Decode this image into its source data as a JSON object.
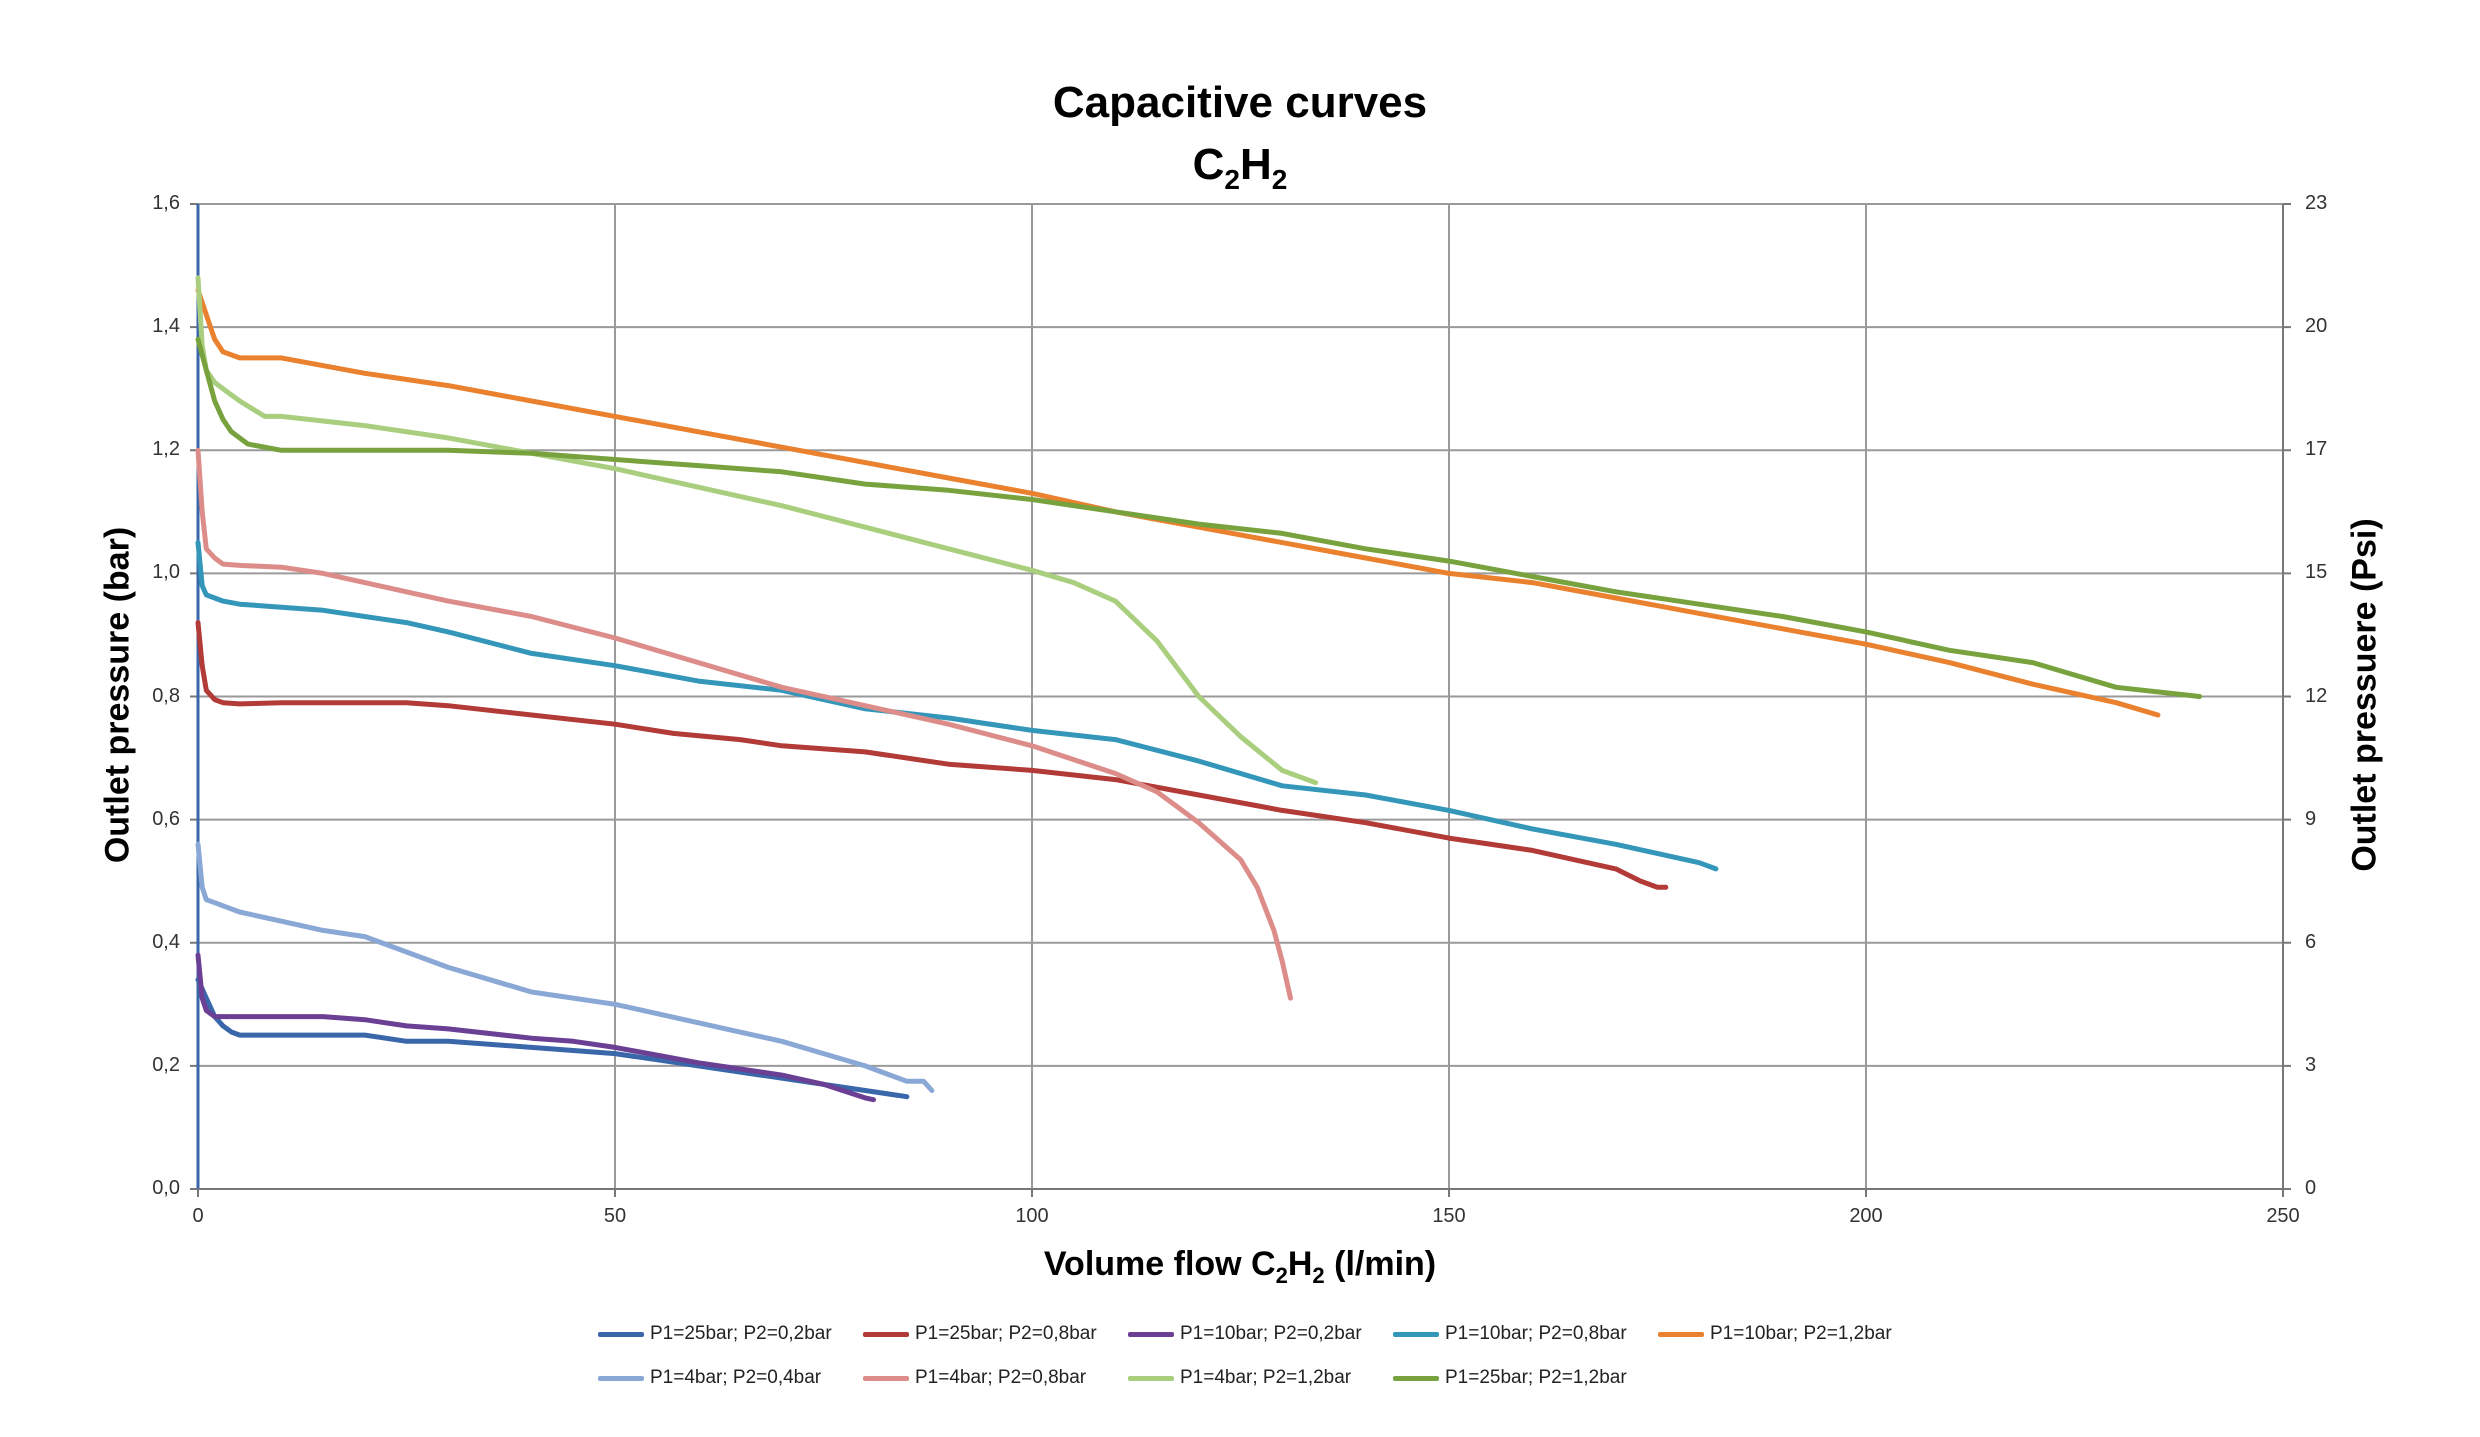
{
  "chart_data": {
    "type": "line",
    "title": "Capacitive curves",
    "subtitle": {
      "prefix": "C",
      "sub1": "2",
      "mid": "H",
      "sub2": "2"
    },
    "xlabel": {
      "prefix": "Volume flow C",
      "sub1": "2",
      "mid": "H",
      "sub2": "2",
      "suffix": " (l/min)"
    },
    "ylabel": "Outlet pressure (bar)",
    "y2label": "Outlet pressuere (Psi)",
    "xlim": [
      0,
      250
    ],
    "ylim": [
      0,
      1.6
    ],
    "x_ticks": [
      "0",
      "50",
      "100",
      "150",
      "200",
      "250"
    ],
    "y_ticks": [
      "0,0",
      "0,2",
      "0,4",
      "0,6",
      "0,8",
      "1,0",
      "1,2",
      "1,4",
      "1,6"
    ],
    "y2_ticks": [
      "0",
      "3",
      "6",
      "9",
      "12",
      "15",
      "17",
      "20",
      "23"
    ],
    "grid": true,
    "legend_position": "bottom",
    "series": [
      {
        "name": "P1=25bar; P2=0,2bar",
        "color": "#3a66aa",
        "x": [
          0,
          1,
          2,
          3,
          4,
          5,
          7,
          10,
          20,
          25,
          30,
          40,
          50,
          55,
          60,
          70,
          80,
          85
        ],
        "y": [
          0.34,
          0.31,
          0.28,
          0.265,
          0.255,
          0.25,
          0.25,
          0.25,
          0.25,
          0.24,
          0.24,
          0.23,
          0.22,
          0.21,
          0.2,
          0.18,
          0.16,
          0.15
        ]
      },
      {
        "name": "P1=25bar; P2=0,8bar",
        "color": "#b23a37",
        "x": [
          0,
          0.5,
          1,
          2,
          3,
          5,
          10,
          20,
          25,
          30,
          40,
          50,
          57,
          65,
          70,
          80,
          90,
          100,
          110,
          120,
          130,
          140,
          150,
          160,
          170,
          173,
          175,
          176
        ],
        "y": [
          0.92,
          0.85,
          0.81,
          0.795,
          0.79,
          0.788,
          0.79,
          0.79,
          0.79,
          0.785,
          0.77,
          0.755,
          0.74,
          0.73,
          0.72,
          0.71,
          0.69,
          0.68,
          0.665,
          0.64,
          0.615,
          0.595,
          0.57,
          0.55,
          0.52,
          0.5,
          0.49,
          0.49
        ]
      },
      {
        "name": "P1=10bar; P2=0,2bar",
        "color": "#6b3f93",
        "x": [
          0,
          0.5,
          1,
          2,
          5,
          10,
          15,
          20,
          25,
          30,
          40,
          45,
          50,
          60,
          70,
          75,
          80,
          81
        ],
        "y": [
          0.38,
          0.31,
          0.29,
          0.28,
          0.28,
          0.28,
          0.28,
          0.275,
          0.265,
          0.26,
          0.245,
          0.24,
          0.23,
          0.205,
          0.185,
          0.17,
          0.148,
          0.145
        ]
      },
      {
        "name": "P1=10bar; P2=0,8bar",
        "color": "#3497ba",
        "x": [
          0,
          0.5,
          1,
          3,
          5,
          10,
          15,
          20,
          25,
          30,
          40,
          50,
          60,
          70,
          80,
          90,
          100,
          110,
          120,
          130,
          140,
          150,
          160,
          170,
          180,
          182
        ],
        "y": [
          1.05,
          0.98,
          0.965,
          0.955,
          0.95,
          0.945,
          0.94,
          0.93,
          0.92,
          0.905,
          0.87,
          0.85,
          0.825,
          0.81,
          0.78,
          0.765,
          0.745,
          0.73,
          0.695,
          0.655,
          0.64,
          0.615,
          0.585,
          0.56,
          0.53,
          0.52
        ]
      },
      {
        "name": "P1=10bar; P2=1,2bar",
        "color": "#e9812f",
        "x": [
          0,
          1,
          2,
          3,
          5,
          8,
          10,
          20,
          30,
          40,
          50,
          60,
          70,
          80,
          90,
          100,
          110,
          120,
          130,
          140,
          150,
          160,
          170,
          180,
          190,
          200,
          210,
          220,
          230,
          235
        ],
        "y": [
          1.46,
          1.42,
          1.38,
          1.36,
          1.35,
          1.35,
          1.35,
          1.325,
          1.305,
          1.28,
          1.255,
          1.23,
          1.205,
          1.18,
          1.155,
          1.13,
          1.1,
          1.075,
          1.05,
          1.025,
          1.0,
          0.985,
          0.96,
          0.935,
          0.91,
          0.885,
          0.855,
          0.82,
          0.79,
          0.77
        ]
      },
      {
        "name": "P1=4bar; P2=0,4bar",
        "color": "#8aa8d6",
        "x": [
          0,
          0.5,
          1,
          2,
          3,
          5,
          10,
          15,
          20,
          25,
          30,
          35,
          40,
          50,
          60,
          70,
          75,
          80,
          85,
          87,
          88
        ],
        "y": [
          0.56,
          0.49,
          0.47,
          0.465,
          0.46,
          0.45,
          0.435,
          0.42,
          0.41,
          0.385,
          0.36,
          0.34,
          0.32,
          0.3,
          0.27,
          0.24,
          0.22,
          0.2,
          0.175,
          0.175,
          0.16
        ]
      },
      {
        "name": "P1=4bar; P2=0,8bar",
        "color": "#dc8d8a",
        "x": [
          0,
          0.5,
          1,
          2,
          3,
          5,
          10,
          15,
          20,
          30,
          40,
          50,
          60,
          70,
          80,
          90,
          100,
          110,
          115,
          120,
          125,
          127,
          129,
          130,
          131
        ],
        "y": [
          1.2,
          1.1,
          1.04,
          1.025,
          1.015,
          1.013,
          1.01,
          1.0,
          0.985,
          0.955,
          0.93,
          0.895,
          0.855,
          0.815,
          0.785,
          0.755,
          0.72,
          0.675,
          0.645,
          0.595,
          0.535,
          0.49,
          0.42,
          0.37,
          0.31
        ]
      },
      {
        "name": "P1=4bar; P2=1,2bar",
        "color": "#a9cf7e",
        "x": [
          0,
          0.5,
          1,
          2,
          3,
          5,
          8,
          10,
          20,
          30,
          40,
          50,
          60,
          70,
          80,
          90,
          100,
          105,
          110,
          115,
          120,
          125,
          130,
          134
        ],
        "y": [
          1.48,
          1.37,
          1.33,
          1.31,
          1.3,
          1.28,
          1.255,
          1.255,
          1.24,
          1.22,
          1.195,
          1.17,
          1.14,
          1.11,
          1.075,
          1.04,
          1.005,
          0.985,
          0.955,
          0.89,
          0.8,
          0.735,
          0.68,
          0.66
        ]
      },
      {
        "name": "P1=25bar; P2=1,2bar",
        "color": "#77a23d",
        "x": [
          0,
          1,
          2,
          3,
          4,
          6,
          10,
          20,
          30,
          40,
          50,
          60,
          70,
          80,
          90,
          100,
          110,
          120,
          130,
          140,
          150,
          160,
          170,
          180,
          190,
          200,
          210,
          220,
          225,
          230,
          240
        ],
        "y": [
          1.38,
          1.33,
          1.28,
          1.25,
          1.23,
          1.21,
          1.2,
          1.2,
          1.2,
          1.195,
          1.185,
          1.175,
          1.165,
          1.145,
          1.135,
          1.12,
          1.1,
          1.08,
          1.065,
          1.04,
          1.02,
          0.995,
          0.97,
          0.95,
          0.93,
          0.905,
          0.875,
          0.855,
          0.835,
          0.815,
          0.8
        ]
      }
    ]
  }
}
